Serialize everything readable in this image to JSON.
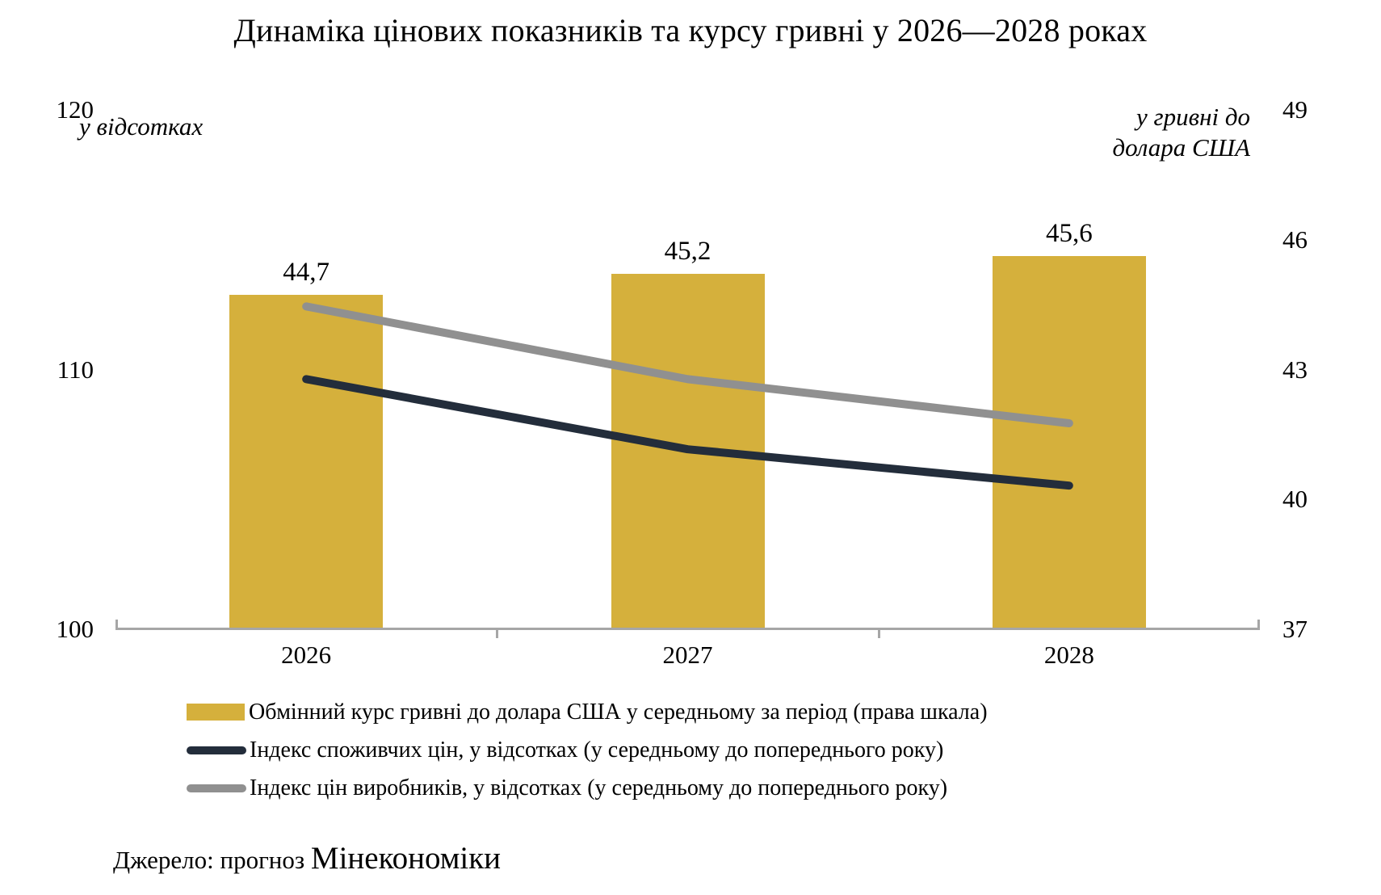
{
  "title": "Динаміка цінових показників та курсу гривні у 2026—2028 роках",
  "left_axis": {
    "unit_label": "у відсотках",
    "ticks": [
      "120",
      "110",
      "100"
    ],
    "range": [
      100,
      120
    ]
  },
  "right_axis": {
    "unit_label_line1": "у гривні до",
    "unit_label_line2": "долара США",
    "ticks": [
      "49",
      "46",
      "43",
      "40",
      "37"
    ],
    "range": [
      37,
      49
    ]
  },
  "colors": {
    "bar": "#d5b03c",
    "cpi_line": "#232d3b",
    "ppi_line": "#909090",
    "axis": "#a6a6a6",
    "text": "#000000"
  },
  "chart_data": {
    "type": "bar+line",
    "categories": [
      "2026",
      "2027",
      "2028"
    ],
    "series": [
      {
        "name": "Обмінний курс гривні до долара США у середньому за період (права шкала)",
        "type": "bar",
        "axis": "right",
        "values": [
          44.7,
          45.2,
          45.6
        ],
        "value_labels": [
          "44,7",
          "45,2",
          "45,6"
        ],
        "color": "#d5b03c"
      },
      {
        "name": "Індекс споживчих цін, у відсотках (у середньому до попереднього року)",
        "type": "line",
        "axis": "left",
        "values": [
          109.6,
          106.9,
          105.5
        ],
        "color": "#232d3b"
      },
      {
        "name": "Індекс цін виробників, у відсотках (у середньому до попереднього року)",
        "type": "line",
        "axis": "left",
        "values": [
          112.4,
          109.6,
          107.9
        ],
        "color": "#909090"
      }
    ],
    "left_axis_range": [
      100,
      120
    ],
    "right_axis_range": [
      37,
      49
    ],
    "grid": false,
    "legend_position": "bottom"
  },
  "source": {
    "prefix": "Джерело: прогноз ",
    "org": "Мінекономіки"
  }
}
